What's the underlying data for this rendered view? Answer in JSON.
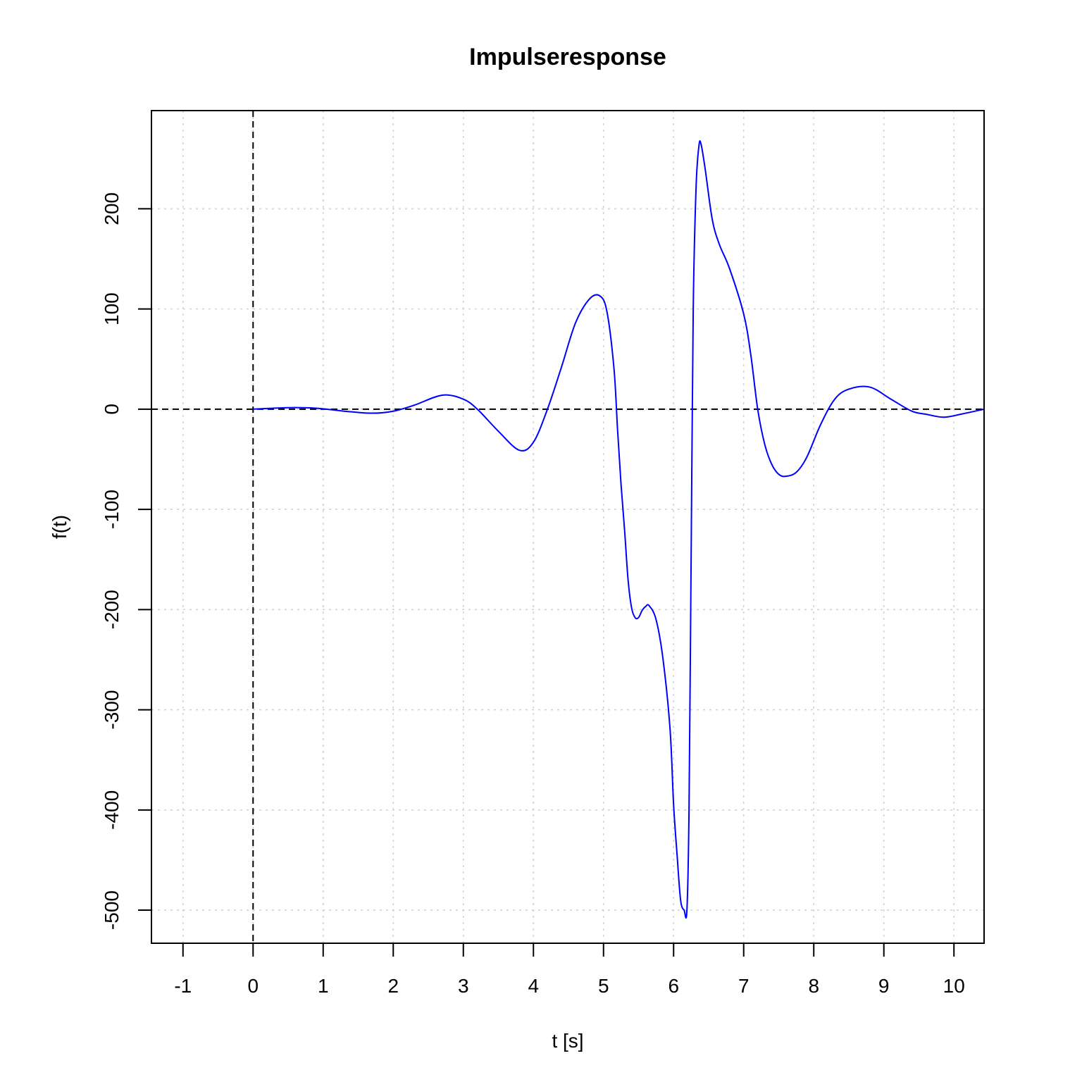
{
  "chart_data": {
    "type": "line",
    "title": "Impulseresponse",
    "xlabel": "t [s]",
    "ylabel": "f(t)",
    "xlim": [
      -1.45,
      10.43
    ],
    "ylim": [
      -533,
      298
    ],
    "x_ticks": [
      -1,
      0,
      1,
      2,
      3,
      4,
      5,
      6,
      7,
      8,
      9,
      10
    ],
    "y_ticks": [
      -500,
      -400,
      -300,
      -200,
      -100,
      0,
      100,
      200
    ],
    "grid": true,
    "reference_lines": {
      "vertical_x": 0,
      "horizontal_y": 0
    },
    "line_color": "#0000ff",
    "series": [
      {
        "x": [
          0.0,
          0.5,
          0.9,
          1.3,
          1.7,
          2.0,
          2.3,
          2.7,
          3.0,
          3.2,
          3.5,
          3.8,
          4.0,
          4.2,
          4.4,
          4.6,
          4.8,
          4.95,
          5.05,
          5.15,
          5.2,
          5.25,
          5.3,
          5.35,
          5.4,
          5.45,
          5.5,
          5.55,
          5.6,
          5.65,
          5.75,
          5.85,
          5.95,
          6.0,
          6.05,
          6.1,
          6.15,
          6.19,
          6.22,
          6.25,
          6.28,
          6.32,
          6.36,
          6.39,
          6.45,
          6.55,
          6.65,
          6.8,
          7.0,
          7.1,
          7.2,
          7.3,
          7.4,
          7.5,
          7.6,
          7.75,
          7.9,
          8.1,
          8.3,
          8.5,
          8.8,
          9.1,
          9.4,
          9.6,
          9.85,
          10.1,
          10.43
        ],
        "y": [
          0,
          1.5,
          1,
          -2,
          -4,
          -2,
          4,
          14,
          10,
          0,
          -22,
          -41,
          -33,
          0,
          42,
          86,
          110,
          113,
          97,
          40,
          -20,
          -75,
          -120,
          -170,
          -198,
          -208,
          -208,
          -201,
          -197,
          -196,
          -210,
          -250,
          -320,
          -395,
          -445,
          -490,
          -500,
          -500,
          -400,
          -150,
          100,
          220,
          262,
          265,
          240,
          190,
          165,
          140,
          95,
          55,
          0,
          -35,
          -55,
          -65,
          -67,
          -63,
          -48,
          -15,
          10,
          20,
          22,
          10,
          -2,
          -5,
          -8,
          -5,
          0
        ]
      }
    ]
  }
}
